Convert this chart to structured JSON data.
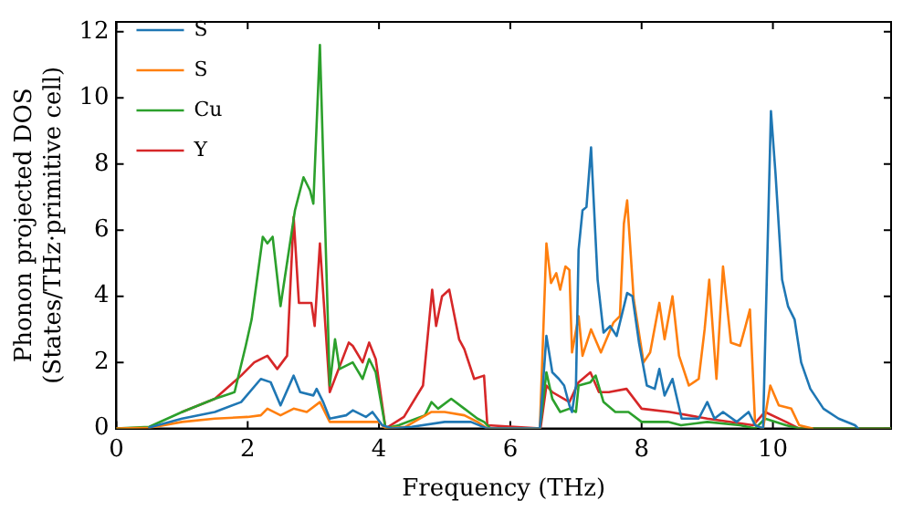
{
  "chart_data": {
    "type": "line",
    "xlabel": "Frequency (THz)",
    "ylabel": "Phonon projected DOS\n(States/THz·primitive cell)",
    "xlim": [
      0,
      11.8
    ],
    "ylim": [
      0,
      12.3
    ],
    "xticks": [
      0,
      2,
      4,
      6,
      8,
      10
    ],
    "yticks": [
      0,
      2,
      4,
      6,
      8,
      10,
      12
    ],
    "grid": false,
    "legend": "top left",
    "marker": "none",
    "line_style": "solid",
    "series": [
      {
        "name": "S",
        "color": "#1f77b4",
        "x": [
          0.5,
          1.0,
          1.5,
          1.9,
          2.2,
          2.35,
          2.5,
          2.7,
          2.8,
          3.0,
          3.05,
          3.15,
          3.25,
          3.5,
          3.6,
          3.8,
          3.9,
          4.05,
          4.2,
          4.5,
          5.0,
          5.4,
          5.65,
          6.45,
          6.55,
          6.64,
          6.74,
          6.82,
          6.9,
          6.94,
          7.0,
          7.04,
          7.1,
          7.16,
          7.23,
          7.33,
          7.42,
          7.52,
          7.62,
          7.78,
          7.86,
          7.96,
          8.08,
          8.2,
          8.27,
          8.35,
          8.47,
          8.61,
          8.87,
          9.0,
          9.11,
          9.24,
          9.45,
          9.63,
          9.73,
          9.85,
          9.97,
          10.04,
          10.14,
          10.23,
          10.33,
          10.43,
          10.57,
          10.77,
          11.0,
          11.25,
          11.3
        ],
        "values": [
          0.03,
          0.3,
          0.5,
          0.8,
          1.5,
          1.4,
          0.7,
          1.6,
          1.1,
          1.0,
          1.2,
          0.8,
          0.3,
          0.4,
          0.55,
          0.35,
          0.5,
          0.1,
          0,
          0.05,
          0.2,
          0.2,
          0,
          0,
          2.8,
          1.7,
          1.5,
          1.3,
          0.7,
          0.5,
          1.3,
          5.4,
          6.6,
          6.7,
          8.5,
          4.5,
          2.9,
          3.1,
          2.8,
          4.1,
          4.0,
          2.6,
          1.3,
          1.2,
          1.8,
          1.0,
          1.5,
          0.3,
          0.3,
          0.8,
          0.3,
          0.5,
          0.2,
          0.5,
          0.1,
          0,
          9.6,
          7.7,
          4.5,
          3.7,
          3.3,
          2.0,
          1.2,
          0.6,
          0.3,
          0.1,
          0
        ]
      },
      {
        "name": "S",
        "color": "#ff7f0e",
        "x": [
          0,
          0.5,
          1.0,
          1.5,
          2.0,
          2.2,
          2.3,
          2.5,
          2.7,
          2.9,
          3.1,
          3.25,
          4.0,
          4.1,
          4.4,
          4.8,
          5.0,
          5.3,
          5.5,
          5.65,
          6.45,
          6.55,
          6.62,
          6.7,
          6.76,
          6.84,
          6.9,
          6.94,
          7.04,
          7.1,
          7.23,
          7.38,
          7.57,
          7.67,
          7.73,
          7.78,
          7.88,
          8.03,
          8.13,
          8.27,
          8.35,
          8.47,
          8.57,
          8.72,
          8.87,
          8.96,
          9.03,
          9.14,
          9.24,
          9.36,
          9.5,
          9.57,
          9.65,
          9.73,
          9.85,
          9.96,
          10.09,
          10.28,
          10.4,
          10.6
        ],
        "values": [
          0,
          0.02,
          0.2,
          0.3,
          0.35,
          0.4,
          0.6,
          0.4,
          0.6,
          0.5,
          0.8,
          0.2,
          0.2,
          0,
          0.05,
          0.5,
          0.5,
          0.4,
          0.2,
          0,
          0,
          5.6,
          4.4,
          4.7,
          4.2,
          4.9,
          4.8,
          2.3,
          3.4,
          2.2,
          3.0,
          2.3,
          3.2,
          3.4,
          6.2,
          6.9,
          3.9,
          2.0,
          2.3,
          3.8,
          2.7,
          4.0,
          2.2,
          1.3,
          1.5,
          3.0,
          4.5,
          1.5,
          4.9,
          2.6,
          2.5,
          3.0,
          3.6,
          0.1,
          0,
          1.3,
          0.7,
          0.6,
          0.1,
          0
        ]
      },
      {
        "name": "Cu",
        "color": "#2ca02c",
        "x": [
          0,
          0.5,
          1.0,
          1.5,
          1.8,
          1.97,
          2.06,
          2.23,
          2.3,
          2.38,
          2.5,
          2.72,
          2.85,
          2.95,
          3.0,
          3.1,
          3.25,
          3.33,
          3.4,
          3.6,
          3.75,
          3.85,
          3.95,
          4.1,
          4.3,
          4.7,
          4.8,
          4.9,
          5.1,
          5.3,
          5.5,
          5.6,
          5.7,
          6.45,
          6.55,
          6.64,
          6.76,
          6.9,
          7.0,
          7.04,
          7.22,
          7.3,
          7.42,
          7.6,
          7.8,
          8.0,
          8.4,
          8.6,
          9.0,
          9.5,
          9.73,
          9.88,
          10.2,
          10.4,
          11.8
        ],
        "values": [
          0,
          0.05,
          0.5,
          0.9,
          1.1,
          2.5,
          3.3,
          5.8,
          5.6,
          5.8,
          3.7,
          6.6,
          7.6,
          7.2,
          6.8,
          11.6,
          1.3,
          2.7,
          1.8,
          2.0,
          1.5,
          2.1,
          1.7,
          0,
          0.1,
          0.4,
          0.8,
          0.6,
          0.9,
          0.6,
          0.3,
          0.2,
          0,
          0,
          1.7,
          0.9,
          0.5,
          0.6,
          0.5,
          1.3,
          1.4,
          1.6,
          0.8,
          0.5,
          0.5,
          0.2,
          0.2,
          0.1,
          0.2,
          0.1,
          0,
          0.3,
          0.1,
          0,
          0
        ]
      },
      {
        "name": "Y",
        "color": "#d62728",
        "x": [
          1.0,
          1.5,
          1.9,
          2.1,
          2.3,
          2.45,
          2.6,
          2.7,
          2.78,
          2.97,
          3.02,
          3.1,
          3.25,
          3.54,
          3.6,
          3.75,
          3.85,
          3.95,
          4.1,
          4.38,
          4.67,
          4.81,
          4.87,
          4.96,
          5.07,
          5.22,
          5.3,
          5.45,
          5.6,
          5.65,
          6.46,
          6.55,
          6.64,
          6.9,
          7.04,
          7.22,
          7.35,
          7.5,
          7.77,
          8.0,
          8.43,
          9.0,
          9.7,
          9.88,
          10.2,
          10.4,
          11.8
        ],
        "values": [
          0.5,
          0.9,
          1.6,
          2.0,
          2.2,
          1.8,
          2.2,
          6.4,
          3.8,
          3.8,
          3.1,
          5.6,
          1.1,
          2.6,
          2.5,
          2.0,
          2.6,
          2.1,
          0,
          0.35,
          1.3,
          4.2,
          3.1,
          4.0,
          4.2,
          2.7,
          2.4,
          1.5,
          1.6,
          0.1,
          0,
          1.3,
          1.1,
          0.8,
          1.4,
          1.7,
          1.1,
          1.1,
          1.2,
          0.6,
          0.5,
          0.3,
          0.1,
          0.5,
          0.2,
          0,
          0
        ]
      }
    ]
  }
}
